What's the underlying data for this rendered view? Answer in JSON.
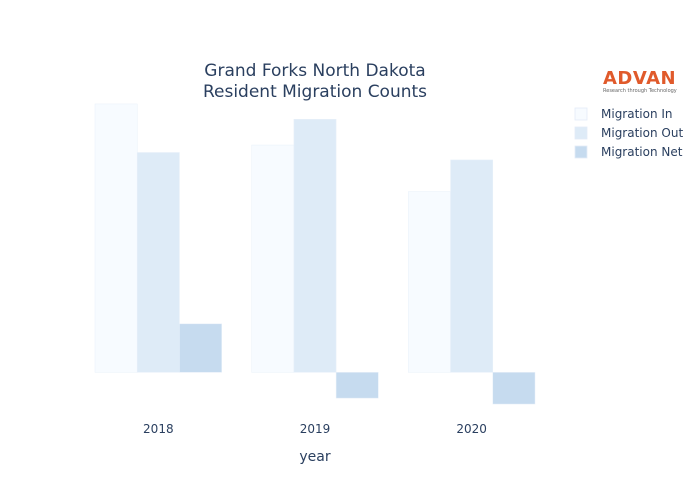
{
  "logo": {
    "name": "ADVAN",
    "tagline": "Research through Technology",
    "color": "#e05a2b"
  },
  "chart_data": {
    "type": "bar",
    "title_lines": [
      "Grand Forks North Dakota",
      "Resident Migration Counts"
    ],
    "xlabel": "year",
    "ylabel": "",
    "categories": [
      "2018",
      "2019",
      "2020"
    ],
    "series": [
      {
        "name": "Migration In",
        "color": "#f7fbff",
        "values": [
          5420,
          4590,
          3650
        ]
      },
      {
        "name": "Migration Out",
        "color": "#deebf7",
        "values": [
          4440,
          5110,
          4290
        ]
      },
      {
        "name": "Migration Net",
        "color": "#c6dbef",
        "values": [
          980,
          -520,
          -640
        ]
      }
    ],
    "ylim": [
      -760,
      5500
    ],
    "y_axis_visible": false,
    "grid": false,
    "legend_position": "top-right"
  }
}
